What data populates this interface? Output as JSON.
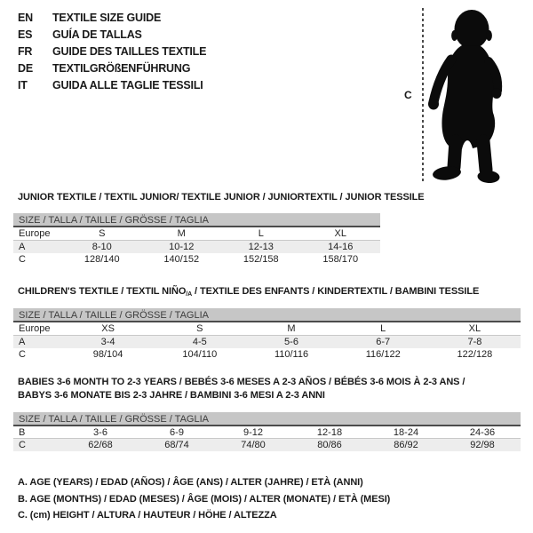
{
  "languages": [
    {
      "code": "EN",
      "title": "TEXTILE SIZE GUIDE"
    },
    {
      "code": "ES",
      "title": "GUÍA DE TALLAS"
    },
    {
      "code": "FR",
      "title": "GUIDE DES TAILLES TEXTILE"
    },
    {
      "code": "DE",
      "title": "TEXTILGRÖßENFÜHRUNG"
    },
    {
      "code": "IT",
      "title": "GUIDA ALLE TAGLIE TESSILI"
    }
  ],
  "figure": {
    "height_label": "C"
  },
  "size_header": "SIZE / TALLA / TAILLE / GRÖSSE / TAGLIA",
  "tables": [
    {
      "title": "JUNIOR TEXTILE / TEXTIL JUNIOR/ TEXTILE JUNIOR / JUNIORTEXTIL / JUNIOR TESSILE",
      "columns": [
        "Europe",
        "S",
        "M",
        "L",
        "XL"
      ],
      "rows": [
        {
          "label": "A",
          "values": [
            "8-10",
            "10-12",
            "12-13",
            "14-16"
          ]
        },
        {
          "label": "C",
          "values": [
            "128/140",
            "140/152",
            "152/158",
            "158/170"
          ]
        }
      ]
    },
    {
      "title_part1": "CHILDREN'S TEXTILE / TEXTIL NIÑO",
      "title_sub": "/A",
      "title_part2": " / TEXTILE DES ENFANTS / KINDERTEXTIL / BAMBINI TESSILE",
      "columns": [
        "Europe",
        "XS",
        "S",
        "M",
        "L",
        "XL"
      ],
      "rows": [
        {
          "label": "A",
          "values": [
            "3-4",
            "4-5",
            "5-6",
            "6-7",
            "7-8"
          ]
        },
        {
          "label": "C",
          "values": [
            "98/104",
            "104/110",
            "110/116",
            "116/122",
            "122/128"
          ]
        }
      ]
    },
    {
      "title_line1": "BABIES 3-6 MONTH TO 2-3 YEARS / BEBÉS 3-6 MESES A 2-3 AÑOS / BÉBÉS 3-6 MOIS À 2-3 ANS /",
      "title_line2": "BABYS 3-6 MONATE BIS 2-3 JAHRE / BAMBINI 3-6 MESI A 2-3 ANNI",
      "rows": [
        {
          "label": "B",
          "values": [
            "3-6",
            "6-9",
            "9-12",
            "12-18",
            "18-24",
            "24-36"
          ]
        },
        {
          "label": "C",
          "values": [
            "62/68",
            "68/74",
            "74/80",
            "80/86",
            "86/92",
            "92/98"
          ]
        }
      ]
    }
  ],
  "footnotes": [
    "A. AGE (YEARS) / EDAD (AÑOS) / ÂGE (ANS) / ALTER (JAHRE) / ETÀ (ANNI)",
    "B. AGE (MONTHS) / EDAD (MESES) / ÂGE (MOIS) / ALTER (MONATE) / ETÀ (MESI)",
    "C. (cm) HEIGHT / ALTURA / HAUTEUR / HÖHE / ALTEZZA"
  ],
  "colors": {
    "header_bar": "#c6c6c6",
    "header_bar_border": "#4c4c4c",
    "row_shade": "#ededed",
    "text": "#1a1a1a"
  }
}
